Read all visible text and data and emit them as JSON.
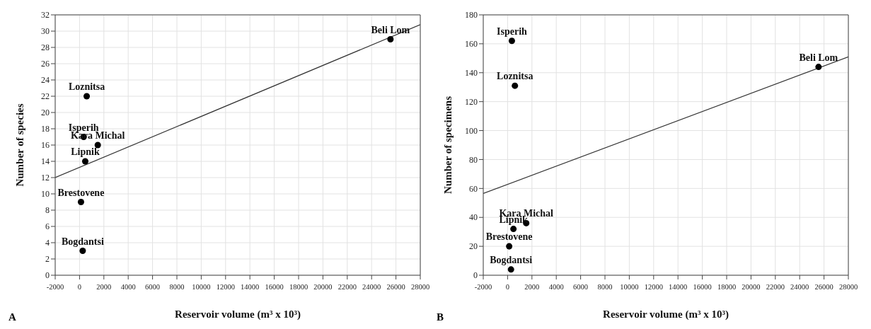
{
  "chart_data": [
    {
      "type": "scatter",
      "xlabel": "Reservoir volume (m³ x 10³)",
      "ylabel": "Number of species",
      "xlim": [
        -2000,
        28000
      ],
      "xticks": [
        -2000,
        0,
        2000,
        4000,
        6000,
        8000,
        10000,
        12000,
        14000,
        16000,
        18000,
        20000,
        22000,
        24000,
        26000,
        28000
      ],
      "ylim": [
        0,
        32
      ],
      "yticks": [
        0,
        2,
        4,
        6,
        8,
        10,
        12,
        14,
        16,
        18,
        20,
        22,
        24,
        26,
        28,
        30,
        32
      ],
      "grid": true,
      "marker": "circle",
      "series": [
        {
          "type": "scatter",
          "color": "#000000",
          "x": [
            590,
            340,
            1500,
            470,
            120,
            260,
            25550
          ],
          "values": [
            22,
            17,
            16,
            14,
            9,
            3,
            29
          ]
        },
        {
          "type": "line",
          "color": "#333333",
          "marker": "none",
          "x": [
            -2000,
            28000
          ],
          "values": [
            12,
            30.8
          ]
        }
      ],
      "annotations": [
        {
          "text": "Loznitsa",
          "x": 590,
          "y": 22
        },
        {
          "text": "Isperih",
          "x": 340,
          "y": 17
        },
        {
          "text": "Kara Michal",
          "x": 1500,
          "y": 16
        },
        {
          "text": "Lipnik",
          "x": 470,
          "y": 14
        },
        {
          "text": "Brestovene",
          "x": 120,
          "y": 9
        },
        {
          "text": "Bogdantsi",
          "x": 260,
          "y": 3
        },
        {
          "text": "Beli Lom",
          "x": 25550,
          "y": 29
        },
        "A"
      ]
    },
    {
      "type": "scatter",
      "xlabel": "Reservoir volume (m³ x 10³)",
      "ylabel": "Number of specimens",
      "xlim": [
        -2000,
        28000
      ],
      "xticks": [
        -2000,
        0,
        2000,
        4000,
        6000,
        8000,
        10000,
        12000,
        14000,
        16000,
        18000,
        20000,
        22000,
        24000,
        26000,
        28000
      ],
      "ylim": [
        0,
        180
      ],
      "yticks": [
        0,
        20,
        40,
        60,
        80,
        100,
        120,
        140,
        160,
        180
      ],
      "grid": true,
      "marker": "circle",
      "series": [
        {
          "type": "scatter",
          "color": "#000000",
          "x": [
            350,
            600,
            1530,
            480,
            130,
            280,
            25550
          ],
          "values": [
            162,
            131,
            36,
            32,
            20,
            4,
            144
          ]
        },
        {
          "type": "line",
          "color": "#333333",
          "marker": "none",
          "x": [
            -2000,
            28000
          ],
          "values": [
            56.5,
            151
          ]
        }
      ],
      "annotations": [
        {
          "text": "Isperih",
          "x": 350,
          "y": 162
        },
        {
          "text": "Loznitsa",
          "x": 600,
          "y": 131
        },
        {
          "text": "Kara Michal",
          "x": 1530,
          "y": 36
        },
        {
          "text": "Lipnik",
          "x": 480,
          "y": 32
        },
        {
          "text": "Brestovene",
          "x": 130,
          "y": 20
        },
        {
          "text": "Bogdantsi",
          "x": 280,
          "y": 4
        },
        {
          "text": "Beli Lom",
          "x": 25550,
          "y": 144
        },
        "B"
      ]
    }
  ]
}
